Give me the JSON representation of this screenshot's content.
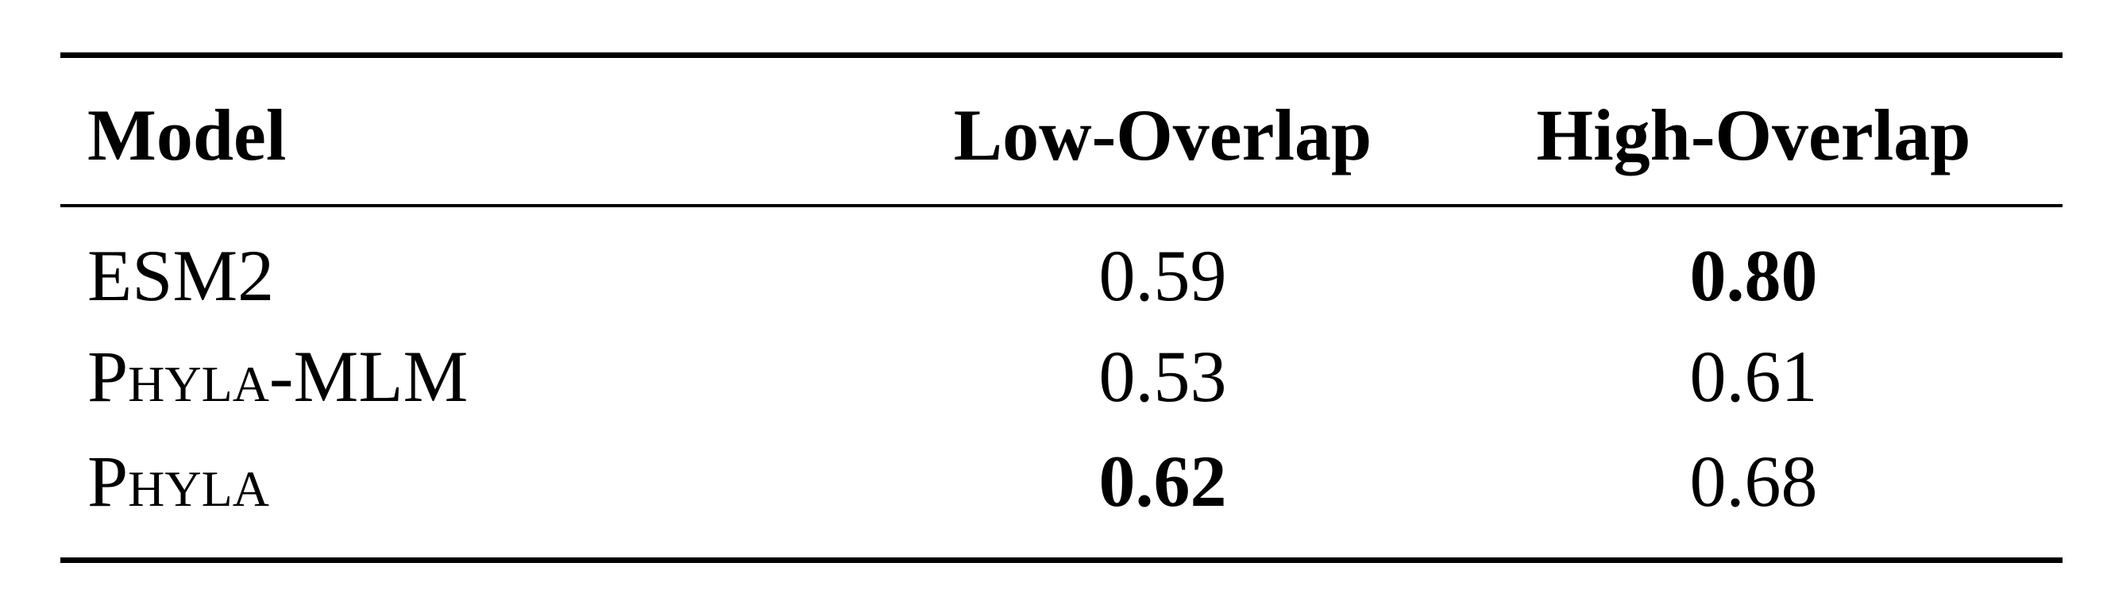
{
  "table": {
    "header": [
      "Model",
      "Low-Overlap",
      "High-Overlap"
    ],
    "rows": [
      [
        "ESM2",
        "0.59",
        "0.80"
      ],
      [
        "Phyla-MLM",
        "0.53",
        "0.61"
      ],
      [
        "Phyla",
        "0.62",
        "0.68"
      ]
    ],
    "small_caps_rows": [
      1,
      2
    ],
    "bold_cells": [
      [
        0,
        2
      ],
      [
        2,
        1
      ]
    ]
  }
}
